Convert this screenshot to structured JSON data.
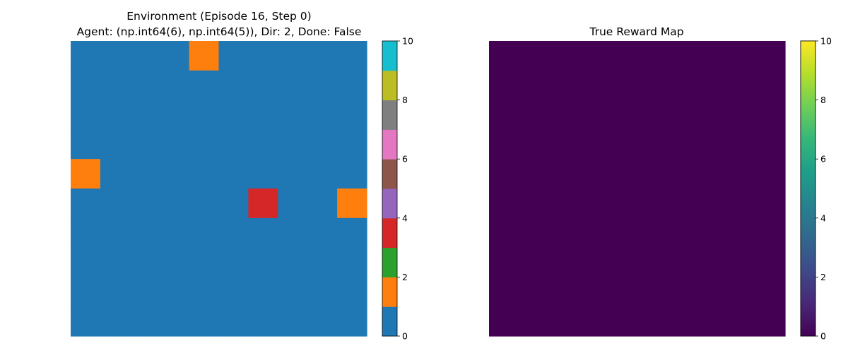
{
  "chart_data": [
    {
      "type": "heatmap",
      "title": "Environment (Episode 16, Step 0)",
      "subtitle": "Agent: (np.int64(6), np.int64(5)), Dir: 2, Done: False",
      "xlabel": "",
      "ylabel": "",
      "grid": false,
      "axes_visible": false,
      "rows": 10,
      "cols": 10,
      "values": [
        [
          0,
          0,
          0,
          0,
          1,
          0,
          0,
          0,
          0,
          0
        ],
        [
          0,
          0,
          0,
          0,
          0,
          0,
          0,
          0,
          0,
          0
        ],
        [
          0,
          0,
          0,
          0,
          0,
          0,
          0,
          0,
          0,
          0
        ],
        [
          0,
          0,
          0,
          0,
          0,
          0,
          0,
          0,
          0,
          0
        ],
        [
          1,
          0,
          0,
          0,
          0,
          0,
          0,
          0,
          0,
          0
        ],
        [
          0,
          0,
          0,
          0,
          0,
          0,
          2,
          0,
          0,
          1
        ],
        [
          0,
          0,
          0,
          0,
          0,
          0,
          0,
          0,
          0,
          0
        ],
        [
          0,
          0,
          0,
          0,
          0,
          0,
          0,
          0,
          0,
          0
        ],
        [
          0,
          0,
          0,
          0,
          0,
          0,
          0,
          0,
          0,
          0
        ],
        [
          0,
          0,
          0,
          0,
          0,
          0,
          0,
          0,
          0,
          0
        ]
      ],
      "cell_colors": [
        "#1f77b4",
        "#ff7f0e",
        "#d62728"
      ],
      "colorbar": {
        "position": "right",
        "range": [
          0,
          10
        ],
        "ticks": [
          "0",
          "2",
          "4",
          "6",
          "8",
          "10"
        ],
        "colors": [
          "#1f77b4",
          "#ff7f0e",
          "#2ca02c",
          "#d62728",
          "#9467bd",
          "#8c564b",
          "#e377c2",
          "#7f7f7f",
          "#bcbd22",
          "#17becf"
        ]
      }
    },
    {
      "type": "heatmap",
      "title": "True Reward Map",
      "xlabel": "",
      "ylabel": "",
      "grid": false,
      "axes_visible": false,
      "rows": 10,
      "cols": 10,
      "fill_value": 0,
      "colormap": "viridis",
      "colorbar": {
        "position": "right",
        "range": [
          0,
          10
        ],
        "ticks": [
          "0",
          "2",
          "4",
          "6",
          "8",
          "10"
        ],
        "colors": [
          "#440154",
          "#482878",
          "#3e4989",
          "#31688e",
          "#26828e",
          "#1f9e89",
          "#35b779",
          "#6ece58",
          "#b5de2b",
          "#fde725"
        ]
      }
    }
  ]
}
